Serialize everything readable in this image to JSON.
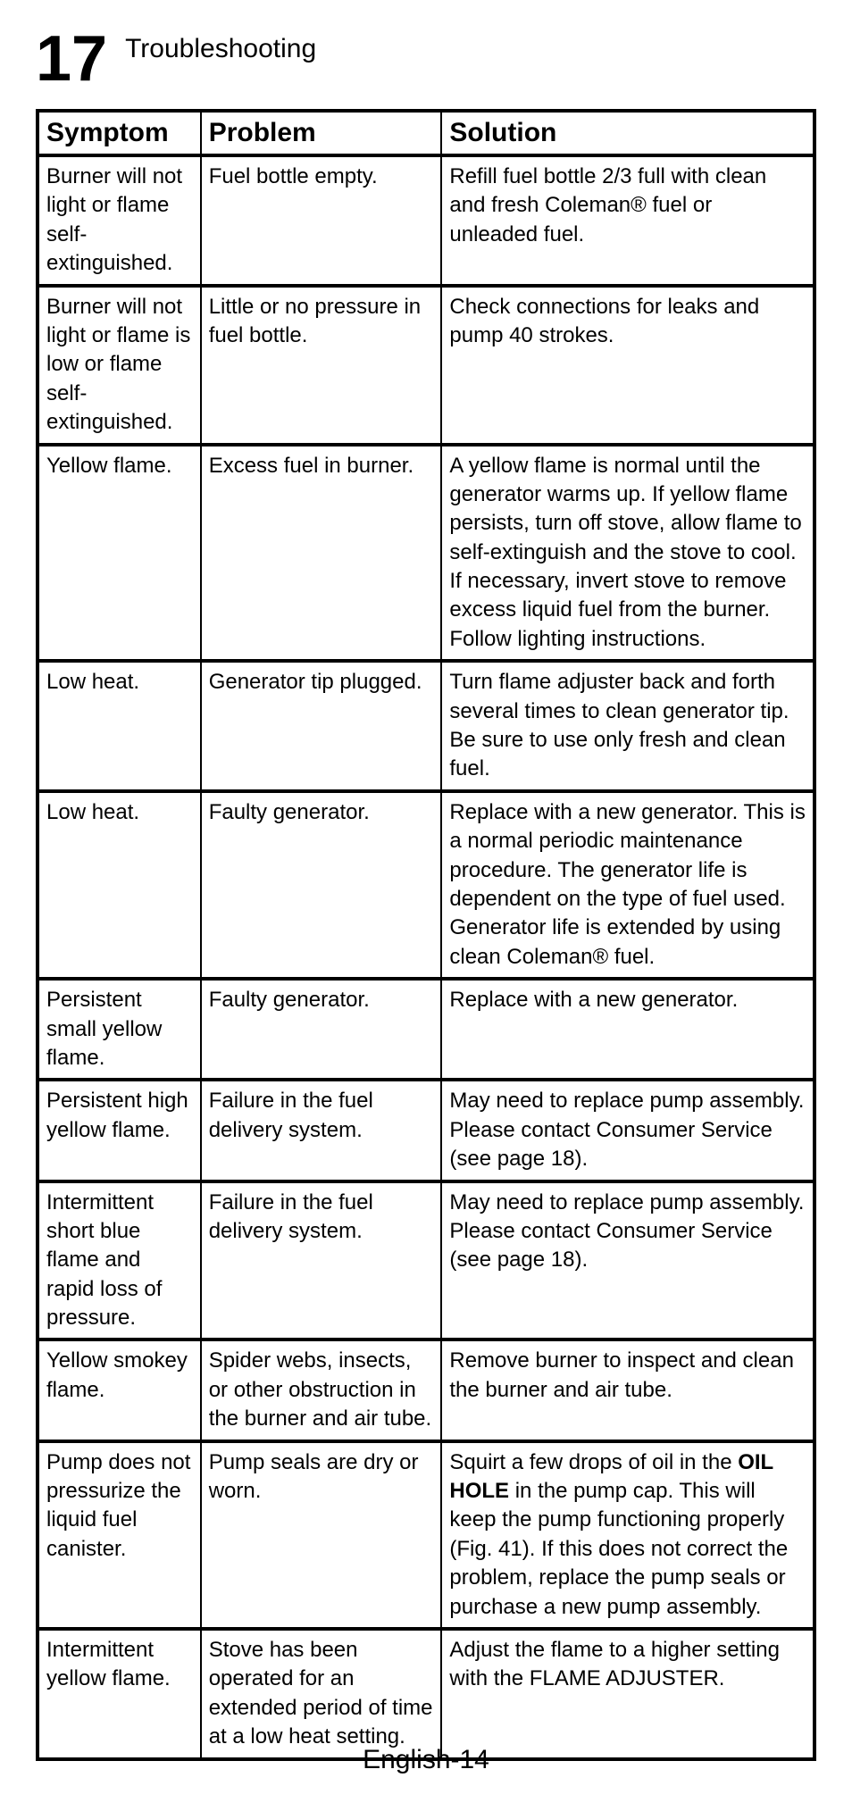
{
  "header": {
    "section_number": "17",
    "title": "Troubleshooting"
  },
  "table": {
    "columns": [
      "Symptom",
      "Problem",
      "Solution"
    ],
    "column_widths": [
      "21%",
      "31%",
      "48%"
    ],
    "rows": [
      {
        "symptom": "Burner will not light or flame self-extinguished.",
        "problem": "Fuel bottle empty.",
        "solution": "Refill fuel bottle 2/3 full with clean and fresh Coleman® fuel or unleaded fuel."
      },
      {
        "symptom": "Burner will not light or flame is low or flame self-extinguished.",
        "problem": "Little or no pressure in fuel bottle.",
        "solution": "Check connections for leaks and pump 40 strokes."
      },
      {
        "symptom": "Yellow flame.",
        "problem": "Excess fuel in burner.",
        "solution": "A yellow flame is normal until the generator warms up.  If yellow flame persists, turn off stove, allow flame to self-extinguish and the stove to cool.  If necessary, invert stove to remove excess liquid fuel from the burner.  Follow lighting instructions."
      },
      {
        "symptom": "Low heat.",
        "problem": "Generator tip plugged.",
        "solution": "Turn flame adjuster back and forth several times to clean generator tip.  Be sure to use only fresh and clean fuel."
      },
      {
        "symptom": "Low heat.",
        "problem": "Faulty generator.",
        "solution": "Replace with a new generator.  This is a normal periodic maintenance procedure.  The generator life is dependent on the type of fuel used.  Generator life is extended by using clean Coleman® fuel."
      },
      {
        "symptom": "Persistent small yellow flame.",
        "problem": "Faulty generator.",
        "solution": "Replace with a new generator."
      },
      {
        "symptom": "Persistent high yellow flame.",
        "problem": "Failure in the fuel delivery system.",
        "solution": "May need to replace pump assembly.  Please contact Consumer Service (see page 18)."
      },
      {
        "symptom": "Intermittent short blue flame and rapid loss of pressure.",
        "problem": "Failure in the fuel delivery system.",
        "solution": "May need to replace pump assembly.  Please contact Consumer Service (see page 18)."
      },
      {
        "symptom": "Yellow smokey flame.",
        "problem": "Spider webs, insects, or other obstruction in the burner and air tube.",
        "solution": "Remove burner to inspect and clean the burner and air tube."
      },
      {
        "symptom": "Pump does not pressurize the liquid fuel canister.",
        "problem": "Pump seals are dry or worn.",
        "solution_parts": [
          {
            "text": "Squirt a few drops of oil in the ",
            "bold": false
          },
          {
            "text": "OIL HOLE",
            "bold": true
          },
          {
            "text": " in the pump cap.  This will keep the pump functioning properly (Fig. 41).  If this does not correct the problem, replace the pump seals or purchase a new pump assembly.",
            "bold": false
          }
        ]
      },
      {
        "symptom": "Intermittent yellow flame.",
        "problem": "Stove has been operated for an extended period of time at a low heat setting.",
        "solution": "Adjust the flame to a higher setting with the FLAME ADJUSTER."
      }
    ]
  },
  "footer": {
    "page_label": "English-14"
  },
  "style": {
    "background_color": "#ffffff",
    "text_color": "#000000",
    "border_color": "#000000",
    "outer_border_width": 4,
    "inner_border_width": 2,
    "row_separator_width": 4,
    "section_number_fontsize": 72,
    "section_title_fontsize": 30,
    "header_fontsize": 30,
    "cell_fontsize": 24,
    "footer_fontsize": 30
  }
}
